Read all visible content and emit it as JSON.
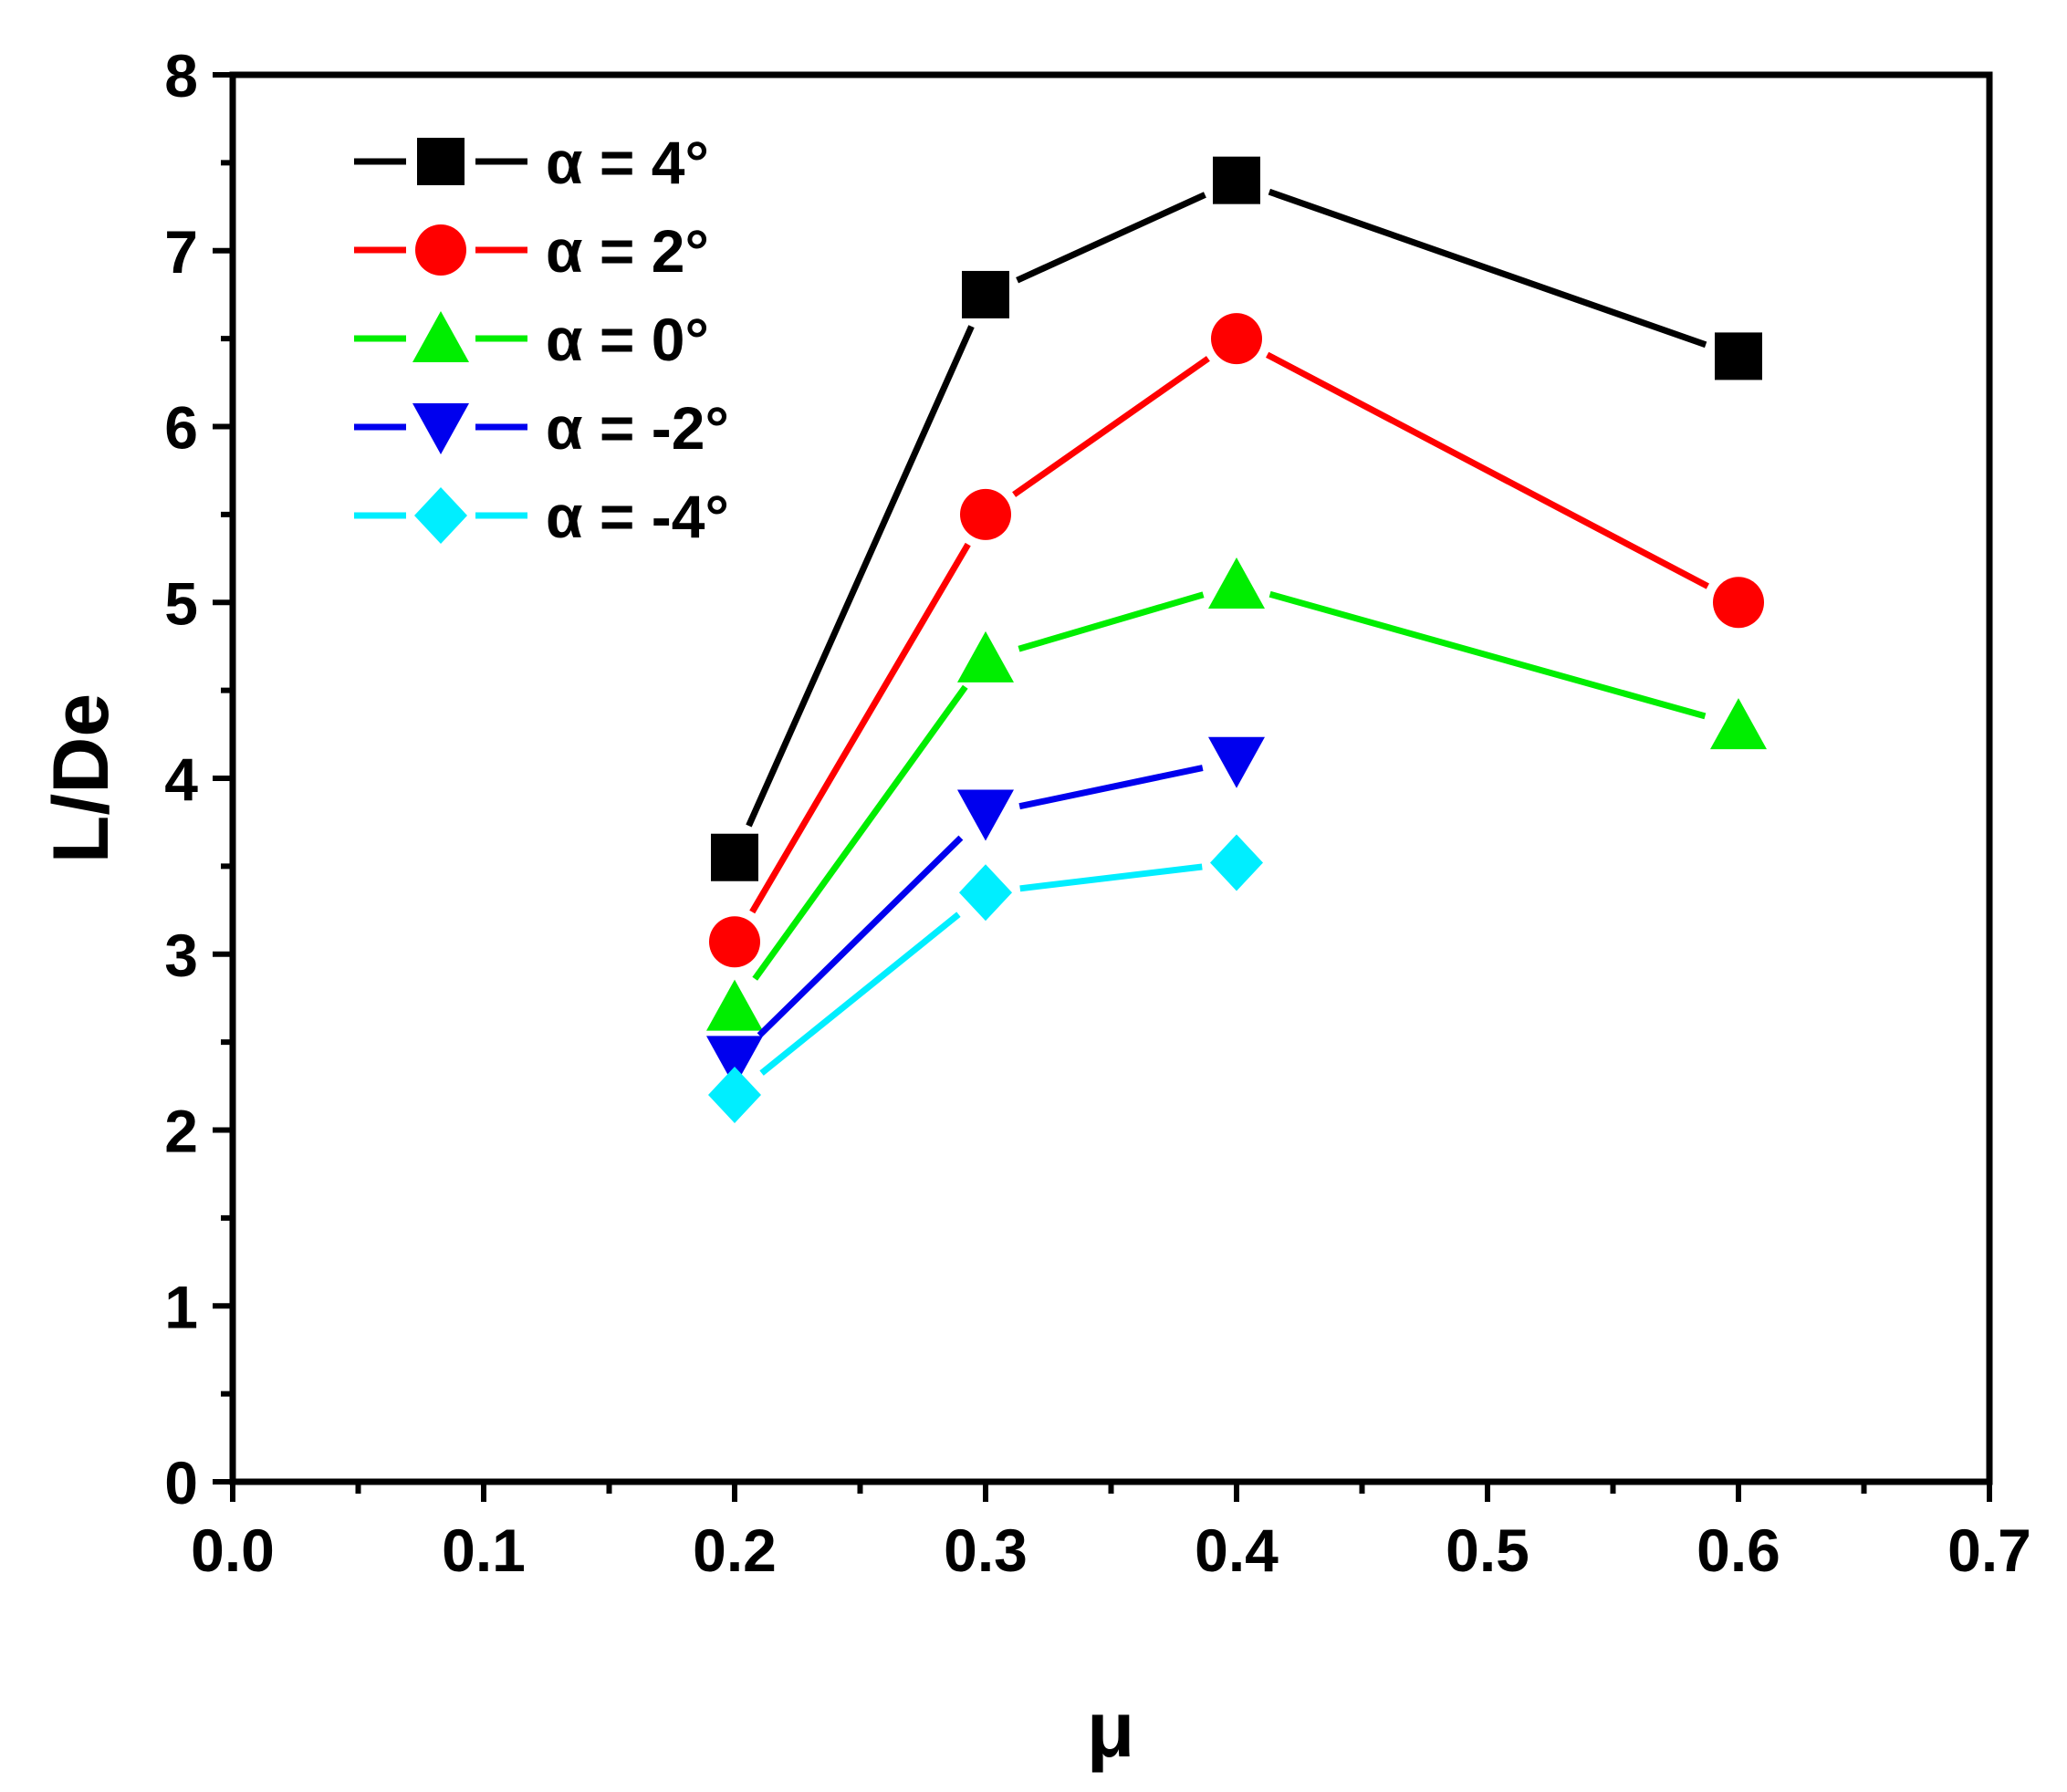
{
  "chart_data": {
    "type": "line",
    "title": "",
    "xlabel": "μ",
    "ylabel": "L/De",
    "xlim": [
      0.0,
      0.7
    ],
    "ylim": [
      0,
      8
    ],
    "x_ticks": [
      0.0,
      0.1,
      0.2,
      0.3,
      0.4,
      0.5,
      0.6,
      0.7
    ],
    "x_tick_labels": [
      "0.0",
      "0.1",
      "0.2",
      "0.3",
      "0.4",
      "0.5",
      "0.6",
      "0.7"
    ],
    "y_ticks": [
      0,
      1,
      2,
      3,
      4,
      5,
      6,
      7,
      8
    ],
    "y_tick_labels": [
      "0",
      "1",
      "2",
      "3",
      "4",
      "5",
      "6",
      "7",
      "8"
    ],
    "grid": false,
    "legend_position": "top-left",
    "series": [
      {
        "name": "α = 4°",
        "color": "#000000",
        "marker": "square",
        "x": [
          0.2,
          0.3,
          0.4,
          0.6
        ],
        "values": [
          3.55,
          6.75,
          7.4,
          6.4
        ]
      },
      {
        "name": "α = 2°",
        "color": "#ff0000",
        "marker": "circle",
        "x": [
          0.2,
          0.3,
          0.4,
          0.6
        ],
        "values": [
          3.07,
          5.5,
          6.5,
          5.0
        ]
      },
      {
        "name": "α = 0°",
        "color": "#00ee00",
        "marker": "triangle-up",
        "x": [
          0.2,
          0.3,
          0.4,
          0.6
        ],
        "values": [
          2.7,
          4.68,
          5.1,
          4.3
        ]
      },
      {
        "name": "α = -2°",
        "color": "#0000ee",
        "marker": "triangle-down",
        "x": [
          0.2,
          0.3,
          0.4
        ],
        "values": [
          2.4,
          3.8,
          4.1
        ]
      },
      {
        "name": "α = -4°",
        "color": "#00eeff",
        "marker": "diamond",
        "x": [
          0.2,
          0.3,
          0.4
        ],
        "values": [
          2.2,
          3.35,
          3.52
        ]
      }
    ]
  }
}
